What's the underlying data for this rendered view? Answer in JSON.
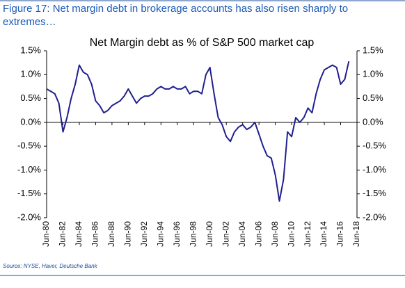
{
  "header": {
    "title": "Figure 17: Net margin debt in brokerage accounts has also risen sharply to",
    "title_line2": "extremes…"
  },
  "chart_data": {
    "type": "line",
    "title": "Net Margin debt as % of S&P 500 market cap",
    "x": [
      "Jun-80",
      "Dec-80",
      "Jun-81",
      "Dec-81",
      "Jun-82",
      "Dec-82",
      "Jun-83",
      "Dec-83",
      "Jun-84",
      "Dec-84",
      "Jun-85",
      "Dec-85",
      "Jun-86",
      "Dec-86",
      "Jun-87",
      "Dec-87",
      "Jun-88",
      "Dec-88",
      "Jun-89",
      "Dec-89",
      "Jun-90",
      "Dec-90",
      "Jun-91",
      "Dec-91",
      "Jun-92",
      "Dec-92",
      "Jun-93",
      "Dec-93",
      "Jun-94",
      "Dec-94",
      "Jun-95",
      "Dec-95",
      "Jun-96",
      "Dec-96",
      "Jun-97",
      "Dec-97",
      "Jun-98",
      "Dec-98",
      "Jun-99",
      "Dec-99",
      "Jun-00",
      "Dec-00",
      "Jun-01",
      "Dec-01",
      "Jun-02",
      "Dec-02",
      "Jun-03",
      "Dec-03",
      "Jun-04",
      "Dec-04",
      "Jun-05",
      "Dec-05",
      "Jun-06",
      "Dec-06",
      "Jun-07",
      "Dec-07",
      "Jun-08",
      "Dec-08",
      "Jun-09",
      "Dec-09",
      "Jun-10",
      "Dec-10",
      "Jun-11",
      "Dec-11",
      "Jun-12",
      "Dec-12",
      "Jun-13",
      "Dec-13",
      "Jun-14",
      "Dec-14",
      "Jun-15",
      "Dec-15",
      "Jun-16",
      "Dec-16",
      "Jun-17"
    ],
    "series": [
      {
        "name": "Net margin debt",
        "color": "#1f1f8f",
        "values": [
          0.7,
          0.65,
          0.6,
          0.4,
          -0.2,
          0.1,
          0.5,
          0.8,
          1.2,
          1.05,
          1.0,
          0.8,
          0.45,
          0.35,
          0.2,
          0.25,
          0.35,
          0.4,
          0.45,
          0.55,
          0.7,
          0.55,
          0.4,
          0.5,
          0.55,
          0.55,
          0.6,
          0.7,
          0.75,
          0.7,
          0.7,
          0.75,
          0.7,
          0.7,
          0.75,
          0.6,
          0.65,
          0.65,
          0.6,
          1.0,
          1.15,
          0.6,
          0.1,
          -0.05,
          -0.3,
          -0.4,
          -0.2,
          -0.1,
          -0.05,
          -0.15,
          -0.1,
          0.0,
          -0.25,
          -0.5,
          -0.7,
          -0.75,
          -1.1,
          -1.65,
          -1.2,
          -0.2,
          -0.3,
          0.1,
          0.0,
          0.1,
          0.3,
          0.2,
          0.6,
          0.9,
          1.1,
          1.15,
          1.2,
          1.15,
          0.8,
          0.9,
          1.28
        ]
      }
    ],
    "xlim": [
      "Jun-80",
      "Jun-18"
    ],
    "xticks": [
      "Jun-80",
      "Jun-82",
      "Jun-84",
      "Jun-86",
      "Jun-88",
      "Jun-90",
      "Jun-92",
      "Jun-94",
      "Jun-96",
      "Jun-98",
      "Jun-00",
      "Jun-02",
      "Jun-04",
      "Jun-06",
      "Jun-08",
      "Jun-10",
      "Jun-12",
      "Jun-14",
      "Jun-16",
      "Jun-18"
    ],
    "ylim": [
      -2.0,
      1.5
    ],
    "yticks": [
      {
        "value": 1.5,
        "label": "1.5%"
      },
      {
        "value": 1.0,
        "label": "1.0%"
      },
      {
        "value": 0.5,
        "label": "0.5%"
      },
      {
        "value": 0,
        "label": "0.0%"
      },
      {
        "value": -0.5,
        "label": "-0.5%"
      },
      {
        "value": -1.0,
        "label": "-1.0%"
      },
      {
        "value": -1.5,
        "label": "-1.5%"
      },
      {
        "value": -2.0,
        "label": "-2.0%"
      }
    ],
    "y2lim": [
      -2.0,
      1.5
    ],
    "y2ticks": [
      {
        "value": 1.5,
        "label": "1.5%"
      },
      {
        "value": 1.0,
        "label": "1.0%"
      },
      {
        "value": 0.5,
        "label": "0.5%"
      },
      {
        "value": 0,
        "label": "0.0%"
      },
      {
        "value": -0.5,
        "label": "-0.5%"
      },
      {
        "value": -1.0,
        "label": "-1.0%"
      },
      {
        "value": -1.5,
        "label": "-1.5%"
      },
      {
        "value": -2.0,
        "label": "-2.0%"
      }
    ],
    "source": "Source: NYSE, Haver, Deutsche Bank"
  }
}
